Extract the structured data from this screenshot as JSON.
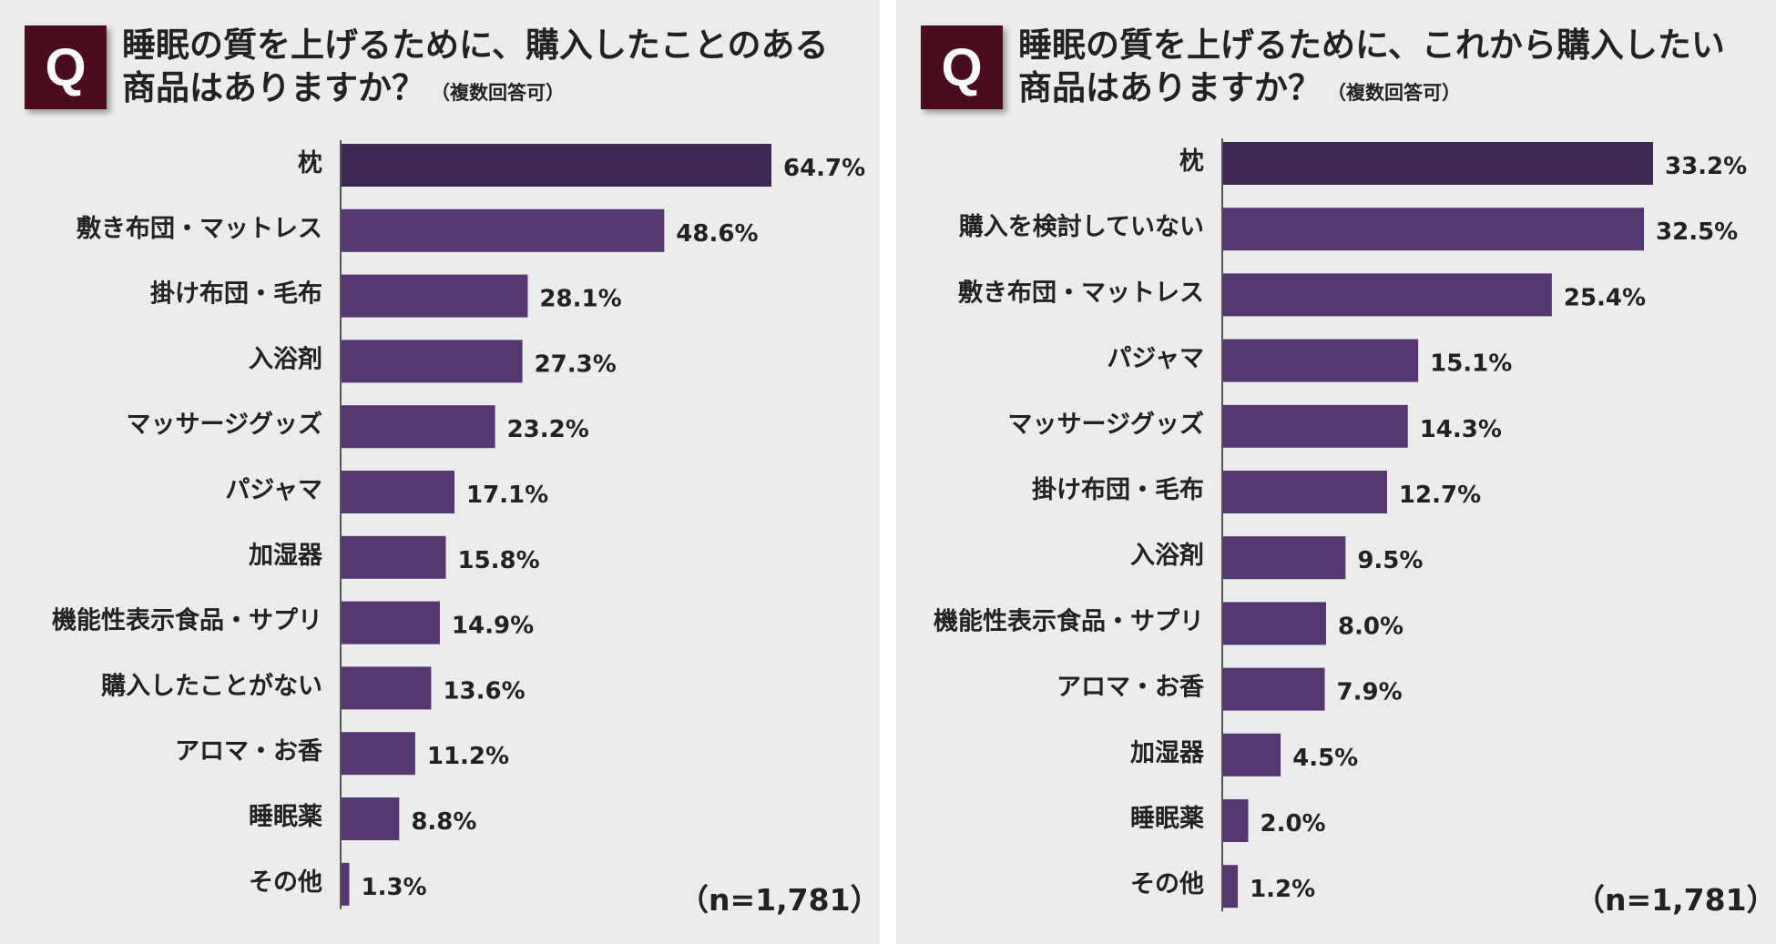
{
  "colors": {
    "bar": "#54376f",
    "top_bar": "#3b2952",
    "badge": "#4a0d1e",
    "text": "#222222",
    "axis": "#555555"
  },
  "chart_data": [
    {
      "type": "bar",
      "orientation": "horizontal",
      "badge": "Q",
      "title_line1": "睡眠の質を上げるために、購入したことのある",
      "title_line2": "商品はありますか？",
      "title_note": "（複数回答可）",
      "n_label": "（n=1,781）",
      "unit": "%",
      "xlim": [
        0,
        70
      ],
      "categories": [
        "枕",
        "敷き布団・マットレス",
        "掛け布団・毛布",
        "入浴剤",
        "マッサージグッズ",
        "パジャマ",
        "加湿器",
        "機能性表示食品・サプリ",
        "購入したことがない",
        "アロマ・お香",
        "睡眠薬",
        "その他"
      ],
      "values": [
        64.7,
        48.6,
        28.1,
        27.3,
        23.2,
        17.1,
        15.8,
        14.9,
        13.6,
        11.2,
        8.8,
        1.3
      ],
      "value_labels": [
        "64.7%",
        "48.6%",
        "28.1%",
        "27.3%",
        "23.2%",
        "17.1%",
        "15.8%",
        "14.9%",
        "13.6%",
        "11.2%",
        "8.8%",
        "1.3%"
      ]
    },
    {
      "type": "bar",
      "orientation": "horizontal",
      "badge": "Q",
      "title_line1": "睡眠の質を上げるために、これから購入したい",
      "title_line2": "商品はありますか？",
      "title_note": "（複数回答可）",
      "n_label": "（n=1,781）",
      "unit": "%",
      "xlim": [
        0,
        35
      ],
      "categories": [
        "枕",
        "購入を検討していない",
        "敷き布団・マットレス",
        "パジャマ",
        "マッサージグッズ",
        "掛け布団・毛布",
        "入浴剤",
        "機能性表示食品・サプリ",
        "アロマ・お香",
        "加湿器",
        "睡眠薬",
        "その他"
      ],
      "values": [
        33.2,
        32.5,
        25.4,
        15.1,
        14.3,
        12.7,
        9.5,
        8.0,
        7.9,
        4.5,
        2.0,
        1.2
      ],
      "value_labels": [
        "33.2%",
        "32.5%",
        "25.4%",
        "15.1%",
        "14.3%",
        "12.7%",
        "9.5%",
        "8.0%",
        "7.9%",
        "4.5%",
        "2.0%",
        "1.2%"
      ]
    }
  ]
}
